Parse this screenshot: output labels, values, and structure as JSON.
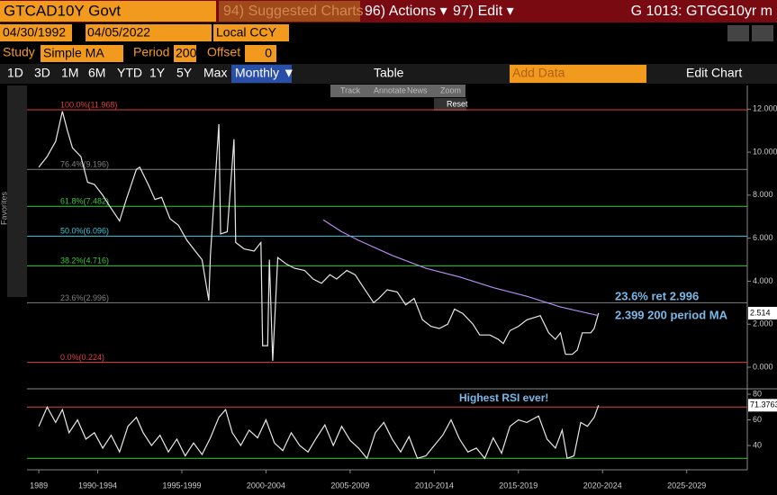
{
  "header": {
    "security": "GTCAD10Y Govt",
    "suggested": "94) Suggested Charts",
    "actions": "96) Actions ▾",
    "edit": "97) Edit ▾",
    "chart_id": "G 1013: GTGG10yr m"
  },
  "controls": {
    "start_date": "04/30/1992",
    "end_date": "04/05/2022",
    "currency": "Local CCY",
    "study_label": "Study",
    "study": "Simple MA",
    "period_label": "Period",
    "period": "200",
    "offset_label": "Offset",
    "offset": "0"
  },
  "toolbar": {
    "ranges": [
      "1D",
      "3D",
      "1M",
      "6M",
      "YTD",
      "1Y",
      "5Y",
      "Max"
    ],
    "frequency": "Monthly ▼",
    "table": "Table",
    "add_data": "Add Data",
    "edit_chart": "Edit Chart"
  },
  "chart_tools": [
    "Track",
    "Annotate",
    "News",
    "Zoom"
  ],
  "reset": "Reset",
  "sidebar": "Favorites",
  "chart_data": [
    {
      "type": "line",
      "xlim": [
        1988.3,
        2031.1
      ],
      "ylim": [
        -0.92,
        13.1
      ],
      "yticks": [
        {
          "value": 0,
          "label": "0.000"
        },
        {
          "value": 2,
          "label": "2.000"
        },
        {
          "value": 4,
          "label": "4.000"
        },
        {
          "value": 6,
          "label": "6.000"
        },
        {
          "value": 8,
          "label": "8.000"
        },
        {
          "value": 10,
          "label": "10.000"
        },
        {
          "value": 12,
          "label": "12.000"
        }
      ],
      "levels": [
        {
          "label": "100.0%(11.968)",
          "value": 11.968,
          "color": "#e04040"
        },
        {
          "label": "76.4%(9.196)",
          "value": 9.196,
          "color": "#808080"
        },
        {
          "label": "61.8%(7.482)",
          "value": 7.482,
          "color": "#3cc83c"
        },
        {
          "label": "50.0%(6.096)",
          "value": 6.096,
          "color": "#40c8e0"
        },
        {
          "label": "38.2%(4.716)",
          "value": 4.716,
          "color": "#3cc83c"
        },
        {
          "label": "23.6%(2.996)",
          "value": 2.996,
          "color": "#808080"
        },
        {
          "label": "0.0%(0.224)",
          "value": 0.224,
          "color": "#e04040"
        }
      ],
      "series": [
        {
          "name": "GTCAD10Y Govt",
          "color": "#e8e8e8",
          "x": [
            1989.0,
            1989.5,
            1990.0,
            1990.4,
            1990.7,
            1991.0,
            1991.5,
            1991.9,
            1992.3,
            1992.8,
            1993.2,
            1993.8,
            1994.2,
            1994.8,
            1995.0,
            1995.5,
            1995.9,
            1996.3,
            1996.8,
            1997.3,
            1997.8,
            1998.3,
            1998.7,
            1999.1,
            1999.2,
            1999.7,
            1999.8,
            2000.2,
            2000.6,
            2000.7,
            2001.2,
            2001.8,
            2002.2,
            2002.3,
            2002.6,
            2002.7,
            2002.9,
            2003.2,
            2003.7,
            2004.2,
            2004.8,
            2005.3,
            2005.8,
            2006.3,
            2006.7,
            2007.3,
            2007.8,
            2008.3,
            2008.9,
            2009.2,
            2009.7,
            2010.3,
            2010.8,
            2011.3,
            2011.8,
            2012.3,
            2012.8,
            2013.3,
            2013.7,
            2014.2,
            2014.8,
            2015.2,
            2015.8,
            2016.3,
            2016.6,
            2017.0,
            2017.5,
            2018.0,
            2018.8,
            2019.3,
            2019.7,
            2020.0,
            2020.3,
            2020.7,
            2021.0,
            2021.3,
            2021.8,
            2022.0,
            2022.26
          ],
          "values": [
            9.3,
            9.8,
            10.5,
            11.9,
            11.0,
            10.2,
            9.8,
            8.6,
            8.5,
            8.0,
            7.5,
            6.8,
            7.8,
            9.2,
            9.3,
            8.5,
            7.8,
            7.9,
            6.9,
            6.6,
            5.9,
            5.4,
            5.0,
            3.1,
            5.2,
            11.3,
            6.2,
            6.3,
            10.6,
            5.8,
            5.5,
            5.4,
            5.8,
            1.0,
            1.0,
            5.0,
            0.3,
            5.1,
            4.8,
            4.6,
            4.5,
            4.1,
            3.9,
            4.3,
            4.1,
            4.5,
            4.3,
            3.7,
            3.0,
            3.2,
            3.6,
            3.5,
            2.9,
            3.2,
            2.2,
            1.9,
            1.8,
            2.0,
            2.7,
            2.5,
            2.0,
            1.5,
            1.5,
            1.3,
            1.1,
            1.7,
            1.9,
            2.2,
            2.4,
            1.6,
            1.3,
            1.6,
            0.6,
            0.6,
            0.8,
            1.6,
            1.6,
            1.8,
            2.514
          ]
        },
        {
          "name": "Simple MA",
          "color": "#b48cf0",
          "x": [
            2005.9,
            2007,
            2008,
            2010,
            2012,
            2014,
            2016,
            2018,
            2020,
            2022.26
          ],
          "values": [
            6.85,
            6.3,
            5.9,
            5.2,
            4.6,
            4.2,
            3.7,
            3.3,
            2.8,
            2.399
          ]
        }
      ],
      "annotations": [
        "23.6% ret 2.996",
        "2.399 200 period MA"
      ],
      "last_value_label": "2.514"
    },
    {
      "type": "line",
      "xlim": [
        1988.3,
        2031.1
      ],
      "ylim": [
        22.5,
        81.4
      ],
      "yticks": [
        40,
        60,
        80
      ],
      "lines": [
        {
          "value": 70,
          "color": "#e04040"
        },
        {
          "value": 30,
          "color": "#3cc83c"
        }
      ],
      "xticks": [
        1989,
        {
          "value": 1992.5,
          "label": "1990-1994"
        },
        {
          "value": 1997.5,
          "label": "1995-1999"
        },
        {
          "value": 2002.5,
          "label": "2000-2004"
        },
        {
          "value": 2007.5,
          "label": "2005-2009"
        },
        {
          "value": 2012.5,
          "label": "2010-2014"
        },
        {
          "value": 2017.5,
          "label": "2015-2019"
        },
        {
          "value": 2022.5,
          "label": "2020-2024"
        },
        {
          "value": 2027.5,
          "label": "2025-2029"
        }
      ],
      "series": [
        {
          "name": "RSI",
          "color": "#e8e8e8",
          "x": [
            1989.0,
            1989.5,
            1990.0,
            1990.4,
            1990.8,
            1991.3,
            1991.8,
            1992.3,
            1992.8,
            1993.3,
            1993.8,
            1994.3,
            1994.8,
            1995.2,
            1995.7,
            1996.2,
            1996.7,
            1997.2,
            1997.7,
            1998.2,
            1998.7,
            1999.2,
            1999.7,
            2000.1,
            2000.5,
            2001.0,
            2001.5,
            2002.0,
            2002.5,
            2003.0,
            2003.5,
            2004.0,
            2004.5,
            2005.0,
            2005.5,
            2006.0,
            2006.5,
            2007.0,
            2007.5,
            2008.0,
            2008.5,
            2009.0,
            2009.5,
            2010.0,
            2010.5,
            2011.0,
            2011.5,
            2012.0,
            2012.5,
            2013.0,
            2013.5,
            2014.0,
            2014.5,
            2015.0,
            2015.5,
            2016.0,
            2016.5,
            2017.0,
            2017.5,
            2018.0,
            2018.7,
            2019.2,
            2019.7,
            2020.1,
            2020.4,
            2020.8,
            2021.2,
            2021.6,
            2022.0,
            2022.26
          ],
          "values": [
            55,
            70,
            58,
            68,
            50,
            60,
            45,
            50,
            38,
            48,
            35,
            55,
            62,
            50,
            40,
            48,
            35,
            45,
            32,
            42,
            33,
            46,
            62,
            68,
            50,
            40,
            52,
            46,
            60,
            42,
            36,
            50,
            40,
            35,
            46,
            56,
            40,
            55,
            44,
            38,
            30,
            50,
            58,
            45,
            35,
            47,
            30,
            32,
            40,
            48,
            60,
            45,
            35,
            38,
            30,
            46,
            34,
            55,
            60,
            58,
            63,
            45,
            38,
            52,
            30,
            32,
            58,
            55,
            62,
            71.3763
          ]
        }
      ],
      "annotation": "Highest RSI ever!",
      "last_value_label": "71.3763"
    }
  ]
}
